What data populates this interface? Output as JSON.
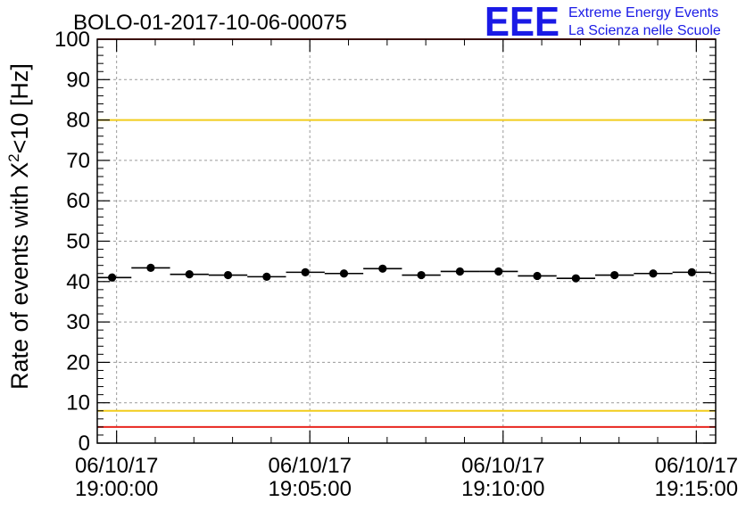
{
  "chart_data": {
    "type": "scatter",
    "title": "BOLO-01-2017-10-06-00075",
    "xlabel": "",
    "ylabel": "Rate of events with χ²<10 [Hz]",
    "ylabel_parts": {
      "main": "Rate of events with X",
      "sup": "2",
      "tail": "<10 [Hz]"
    },
    "x_ticks": [
      {
        "seconds": 0,
        "date": "06/10/17",
        "time": "19:00:00"
      },
      {
        "seconds": 300,
        "date": "06/10/17",
        "time": "19:05:00"
      },
      {
        "seconds": 600,
        "date": "06/10/17",
        "time": "19:10:00"
      },
      {
        "seconds": 900,
        "date": "06/10/17",
        "time": "19:15:00"
      }
    ],
    "y_ticks": [
      0,
      10,
      20,
      30,
      40,
      50,
      60,
      70,
      80,
      90,
      100
    ],
    "ylim": [
      0,
      100
    ],
    "xlim_seconds": [
      -30,
      930
    ],
    "bin_width_seconds": 60,
    "points": [
      {
        "x_seconds": -7,
        "y": 41.0
      },
      {
        "x_seconds": 53,
        "y": 43.4
      },
      {
        "x_seconds": 113,
        "y": 41.8
      },
      {
        "x_seconds": 173,
        "y": 41.6
      },
      {
        "x_seconds": 233,
        "y": 41.2
      },
      {
        "x_seconds": 293,
        "y": 42.3
      },
      {
        "x_seconds": 353,
        "y": 42.0
      },
      {
        "x_seconds": 413,
        "y": 43.2
      },
      {
        "x_seconds": 473,
        "y": 41.6
      },
      {
        "x_seconds": 533,
        "y": 42.5
      },
      {
        "x_seconds": 593,
        "y": 42.5
      },
      {
        "x_seconds": 653,
        "y": 41.4
      },
      {
        "x_seconds": 713,
        "y": 40.8
      },
      {
        "x_seconds": 773,
        "y": 41.6
      },
      {
        "x_seconds": 833,
        "y": 42.0
      },
      {
        "x_seconds": 893,
        "y": 42.3
      }
    ],
    "reference_lines": [
      {
        "y": 100,
        "color": "#e8261f"
      },
      {
        "y": 80,
        "color": "#f2cc1c"
      },
      {
        "y": 8,
        "color": "#f2cc1c"
      },
      {
        "y": 4,
        "color": "#e8261f"
      }
    ],
    "grid": true,
    "marker_color": "#000000"
  },
  "logo": {
    "mark": "EEE",
    "line1": "Extreme Energy Events",
    "line2": "La Scienza nelle Scuole",
    "color": "#1a1ae6"
  }
}
